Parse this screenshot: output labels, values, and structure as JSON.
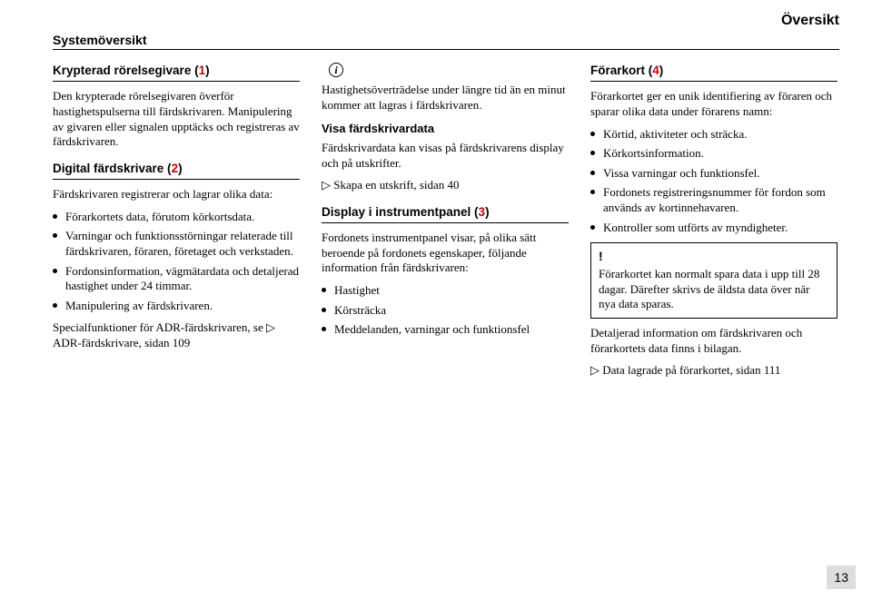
{
  "corner_title": "Översikt",
  "page_subtitle": "Systemöversikt",
  "page_number": "13",
  "colors": {
    "accent_red": "#c00",
    "pageno_bg": "#ddd"
  },
  "col1": {
    "h1_pre": "Krypterad rörelsegivare (",
    "h1_no": "1",
    "h1_post": ")",
    "p1": "Den krypterade rörelsegivaren överför hastighetspulserna till färdskrivaren. Manipulering av givaren eller signalen upptäcks och registreras av färdskrivaren.",
    "h2_pre": "Digital färdskrivare (",
    "h2_no": "2",
    "h2_post": ")",
    "p2": "Färdskrivaren registrerar och lagrar olika data:",
    "b1": "Förarkortets data, förutom körkortsdata.",
    "b2": "Varningar och funktionsstörningar relaterade till färdskrivaren, föraren, företaget och verkstaden.",
    "b3": "Fordonsinformation, vägmätardata och detaljerad hastighet under 24 timmar.",
    "b4": "Manipulering av färdskrivaren.",
    "p3a": "Specialfunktioner för ADR-färdskrivaren, se ",
    "p3b": " ADR-färdskrivare, sidan 109"
  },
  "col2": {
    "info_glyph": "i",
    "p1": "Hastighetsöverträdelse under längre tid än en minut kommer att lagras i färdskrivaren.",
    "sub1": "Visa färdskrivardata",
    "p2": "Färdskrivardata kan visas på färdskrivarens display och på utskrifter.",
    "p3": " Skapa en utskrift, sidan 40",
    "h1_pre": "Display i instrumentpanel (",
    "h1_no": "3",
    "h1_post": ")",
    "p4": "Fordonets instrumentpanel visar, på olika sätt beroende på fordonets egenskaper, följande information från färdskrivaren:",
    "b1": "Hastighet",
    "b2": "Körsträcka",
    "b3": "Meddelanden, varningar och funktionsfel"
  },
  "col3": {
    "h1_pre": "Förarkort (",
    "h1_no": "4",
    "h1_post": ")",
    "p1": "Förarkortet ger en unik identifiering av föraren och sparar olika data under förarens namn:",
    "b1": "Körtid, aktiviteter och sträcka.",
    "b2": "Körkortsinformation.",
    "b3": "Vissa varningar och funktionsfel.",
    "b4": "Fordonets registreringsnummer för fordon som används av kortinnehavaren.",
    "b5": "Kontroller som utförts av myndigheter.",
    "note_bang": "!",
    "note": "Förarkortet kan normalt spara data i upp till 28 dagar. Därefter skrivs de äldsta data över när nya data sparas.",
    "p2": "Detaljerad information om färdskrivaren och förarkortets data finns i bilagan.",
    "p3": " Data lagrade på förarkortet, sidan 111"
  }
}
